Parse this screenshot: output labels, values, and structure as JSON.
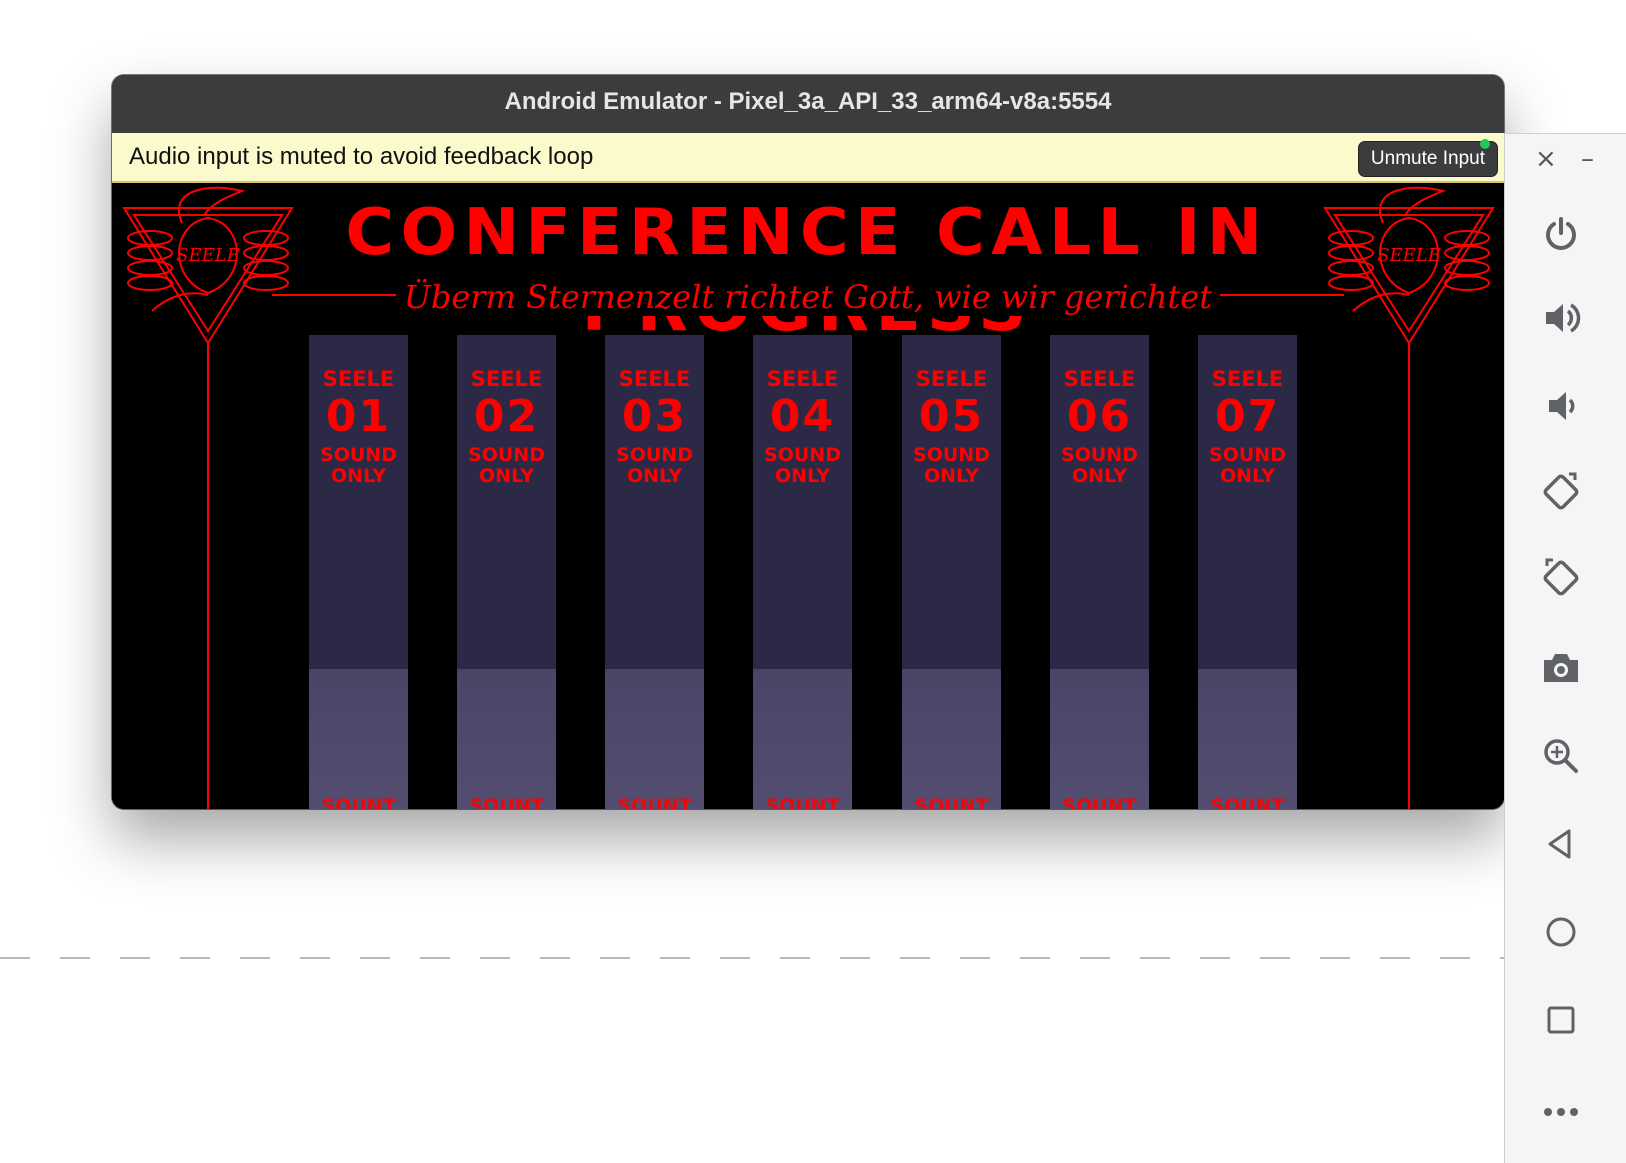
{
  "window": {
    "title": "Android Emulator - Pixel_3a_API_33_arm64-v8a:5554"
  },
  "notice": {
    "text": "Audio input is muted to avoid feedback loop",
    "button": "Unmute Input"
  },
  "app": {
    "title": "CONFERENCE CALL IN PROGRESS",
    "subtitle": "Überm Sternenzelt richtet Gott, wie wir gerichtet",
    "emblem_text": "SEELE",
    "members": [
      {
        "label": "SEELE",
        "number": "01",
        "status_line1": "SOUND",
        "status_line2": "ONLY",
        "cutoff": "SOUNT"
      },
      {
        "label": "SEELE",
        "number": "02",
        "status_line1": "SOUND",
        "status_line2": "ONLY",
        "cutoff": "SOUNT"
      },
      {
        "label": "SEELE",
        "number": "03",
        "status_line1": "SOUND",
        "status_line2": "ONLY",
        "cutoff": "SOUNT"
      },
      {
        "label": "SEELE",
        "number": "04",
        "status_line1": "SOUND",
        "status_line2": "ONLY",
        "cutoff": "SOUNT"
      },
      {
        "label": "SEELE",
        "number": "05",
        "status_line1": "SOUND",
        "status_line2": "ONLY",
        "cutoff": "SOUNT"
      },
      {
        "label": "SEELE",
        "number": "06",
        "status_line1": "SOUND",
        "status_line2": "ONLY",
        "cutoff": "SOUNT"
      },
      {
        "label": "SEELE",
        "number": "07",
        "status_line1": "SOUND",
        "status_line2": "ONLY",
        "cutoff": "SOUNT"
      }
    ]
  },
  "side_panel": {
    "close": "×",
    "minimize": "–",
    "buttons": [
      "power-icon",
      "volume-up-icon",
      "volume-down-icon",
      "rotate-left-icon",
      "rotate-right-icon",
      "camera-icon",
      "zoom-icon",
      "back-icon",
      "home-icon",
      "overview-icon",
      "more-icon"
    ]
  },
  "colors": {
    "accent_red": "#ff0000",
    "panel_purple": "#2b2945",
    "notice_bg": "#fafacd",
    "titlebar": "#3a3c3e"
  }
}
